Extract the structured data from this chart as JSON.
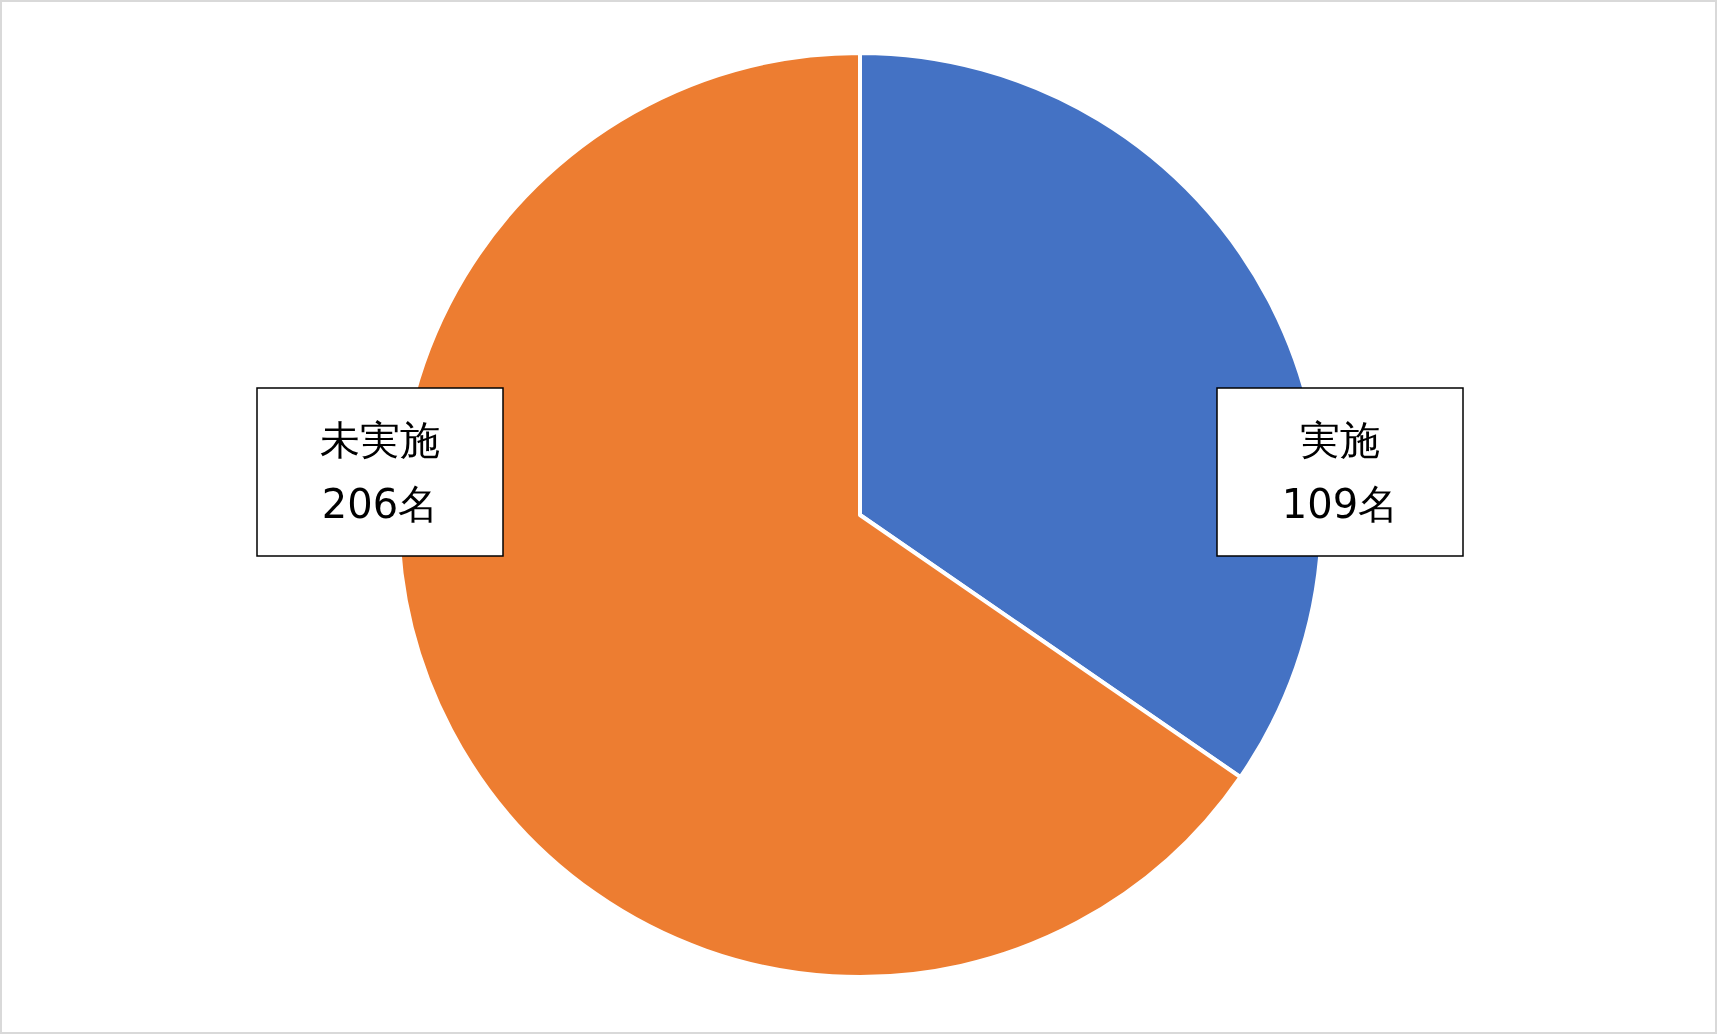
{
  "chart_data": {
    "type": "pie",
    "categories": [
      "実施",
      "未実施"
    ],
    "values": [
      109,
      206
    ],
    "colors": [
      "#4472c4",
      "#ed7d31"
    ],
    "value_labels": [
      "109名",
      "206名"
    ]
  }
}
